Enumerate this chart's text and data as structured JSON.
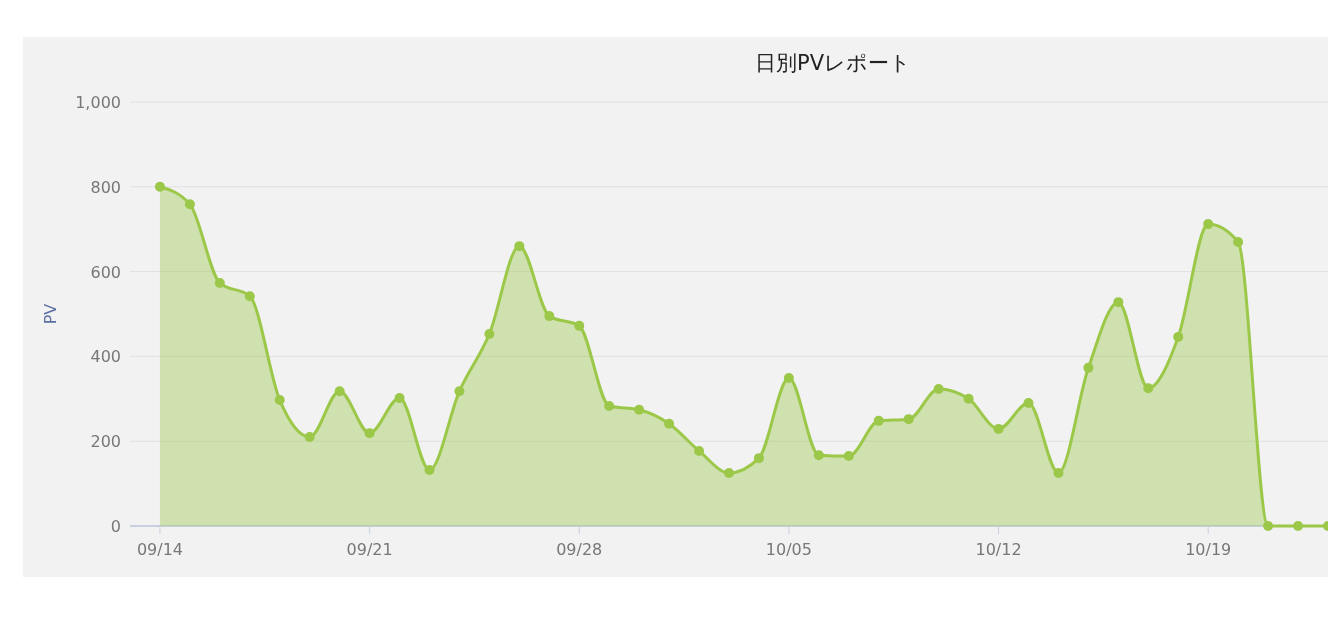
{
  "chart_data": {
    "type": "area",
    "title": "日別PVレポート",
    "ylabel": "PV",
    "x": [
      "--09-14",
      "--09-15",
      "--09-16",
      "--09-17",
      "--09-18",
      "--09-19",
      "--09-20",
      "--09-21",
      "--09-22",
      "--09-23",
      "--09-24",
      "--09-25",
      "--09-26",
      "--09-27",
      "--09-28",
      "--09-29",
      "--09-30",
      "--10-01",
      "--10-02",
      "--10-03",
      "--10-04",
      "--10-05",
      "--10-06",
      "--10-07",
      "--10-08",
      "--10-09",
      "--10-10",
      "--10-11",
      "--10-12",
      "--10-13",
      "--10-14",
      "--10-15",
      "--10-16",
      "--10-17",
      "--10-18",
      "--10-19",
      "--10-20",
      "--10-21",
      "--10-22",
      "--10-23"
    ],
    "series": [
      {
        "color": "#9cc84a",
        "values": [
          800,
          759,
          573,
          542,
          297,
          210,
          318,
          219,
          302,
          132,
          318,
          453,
          660,
          495,
          472,
          283,
          274,
          241,
          177,
          125,
          160,
          349,
          167,
          165,
          248,
          252,
          323,
          300,
          229,
          290,
          125,
          373,
          528,
          325,
          446,
          712,
          670,
          0,
          0,
          0
        ]
      }
    ],
    "xlim": [
      "--09-13",
      "--10-23"
    ],
    "xticks": [
      {
        "value": "--09-14",
        "label": "09/14"
      },
      {
        "value": "--09-21",
        "label": "09/21"
      },
      {
        "value": "--09-28",
        "label": "09/28"
      },
      {
        "value": "--10-05",
        "label": "10/05"
      },
      {
        "value": "--10-12",
        "label": "10/12"
      },
      {
        "value": "--10-19",
        "label": "10/19"
      }
    ],
    "ylim": [
      0,
      1000
    ],
    "yticks": [
      {
        "value": 0,
        "label": "0"
      },
      {
        "value": 200,
        "label": "200"
      },
      {
        "value": 400,
        "label": "400"
      },
      {
        "value": 600,
        "label": "600"
      },
      {
        "value": 800,
        "label": "800"
      },
      {
        "value": 1000,
        "label": "1,000"
      }
    ],
    "grid": "y",
    "marker": "circle"
  }
}
